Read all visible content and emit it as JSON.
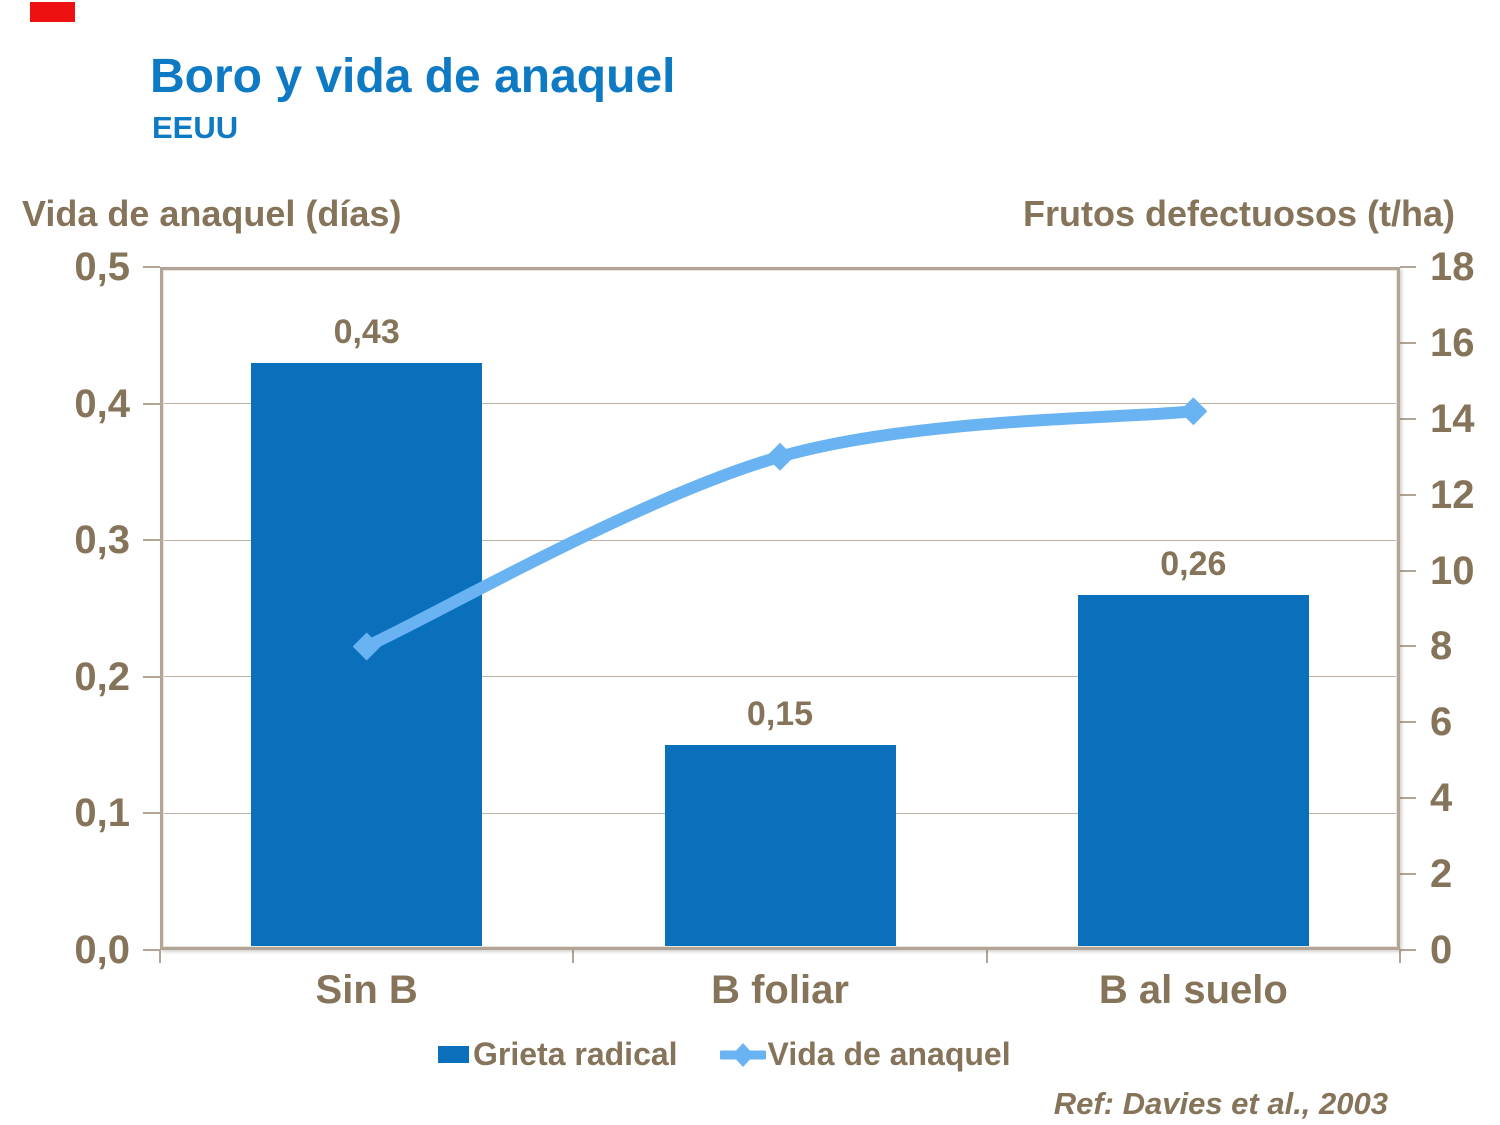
{
  "colors": {
    "title_blue": "#0e7ac4",
    "bar_blue": "#0a70bc",
    "line_blue": "#6ab3f2",
    "text_taupe": "#857459",
    "border_tan": "#b2a496",
    "grid": "#bdb3a4",
    "red_block": "#ee1111"
  },
  "header": {
    "title": "Boro y vida de anaquel",
    "subtitle": "EEUU"
  },
  "axes": {
    "left_title": "Vida de anaquel (días)",
    "right_title": "Frutos defectuosos (t/ha)"
  },
  "chart_data": {
    "type": "combo (bar + smooth line, dual axis)",
    "title": "Boro y vida de anaquel",
    "categories": [
      "Sin B",
      "B foliar",
      "B al suelo"
    ],
    "series": [
      {
        "name": "Grieta radical",
        "type": "bar",
        "axis": "left",
        "values": [
          0.43,
          0.15,
          0.26
        ],
        "value_labels": [
          "0,43",
          "0,15",
          "0,26"
        ]
      },
      {
        "name": "Vida de anaquel",
        "type": "line",
        "axis": "right",
        "smooth": true,
        "marker": "diamond",
        "values": [
          8,
          13,
          14.2
        ]
      }
    ],
    "left_axis": {
      "min": 0,
      "max": 0.5,
      "ticks": [
        {
          "v": 0.5,
          "label": "0,5"
        },
        {
          "v": 0.4,
          "label": "0,4"
        },
        {
          "v": 0.3,
          "label": "0,3"
        },
        {
          "v": 0.2,
          "label": "0,2"
        },
        {
          "v": 0.1,
          "label": "0,1"
        },
        {
          "v": 0.0,
          "label": "0,0"
        }
      ]
    },
    "right_axis": {
      "min": 0,
      "max": 18,
      "ticks": [
        {
          "v": 18,
          "label": "18"
        },
        {
          "v": 16,
          "label": "16"
        },
        {
          "v": 14,
          "label": "14"
        },
        {
          "v": 12,
          "label": "12"
        },
        {
          "v": 10,
          "label": "10"
        },
        {
          "v": 8,
          "label": "8"
        },
        {
          "v": 6,
          "label": "6"
        },
        {
          "v": 4,
          "label": "4"
        },
        {
          "v": 2,
          "label": "2"
        },
        {
          "v": 0,
          "label": "0"
        }
      ]
    },
    "grid": "horizontal, every 0.1 of left axis",
    "legend_position": "bottom"
  },
  "legend": {
    "items": [
      {
        "type": "bar",
        "label": "Grieta radical"
      },
      {
        "type": "line",
        "label": "Vida de anaquel"
      }
    ]
  },
  "footer": {
    "ref": "Ref: Davies et al., 2003"
  }
}
